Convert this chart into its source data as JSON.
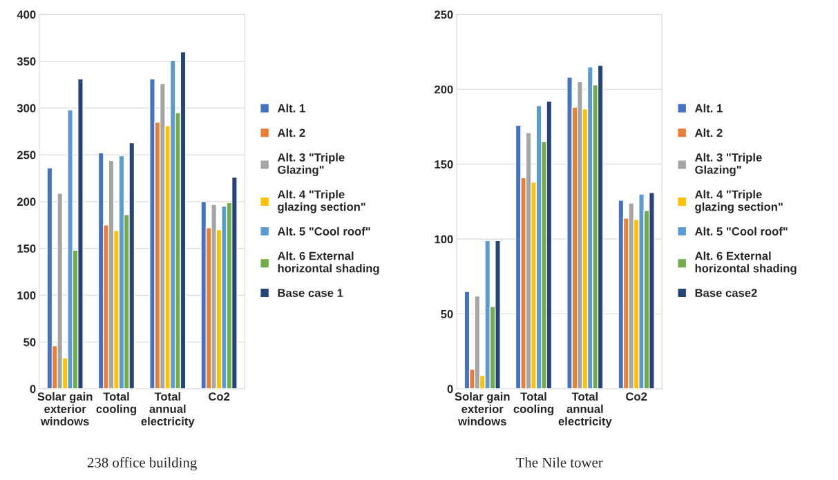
{
  "chart_data": [
    {
      "type": "bar",
      "title": "238 office building",
      "categories": [
        "Solar gain exterior windows",
        "Total cooling",
        "Total annual electricity",
        "Co2"
      ],
      "ylim": [
        0,
        400
      ],
      "yticks": [
        0,
        50,
        100,
        150,
        200,
        250,
        300,
        350,
        400
      ],
      "grid": "y",
      "legend": "right",
      "series": [
        {
          "name": "Alt. 1",
          "color": "#4472c4",
          "values": [
            236,
            252,
            331,
            200
          ]
        },
        {
          "name": "Alt. 2",
          "color": "#ed7d31",
          "values": [
            46,
            175,
            285,
            172
          ]
        },
        {
          "name": "Alt. 3 \"Triple Glazing\"",
          "color": "#a5a5a5",
          "values": [
            209,
            244,
            326,
            197
          ]
        },
        {
          "name": "Alt. 4 \"Triple glazing section\"",
          "color": "#ffc000",
          "values": [
            33,
            169,
            281,
            170
          ]
        },
        {
          "name": "Alt. 5 \"Cool roof\"",
          "color": "#5b9bd5",
          "values": [
            298,
            249,
            351,
            195
          ]
        },
        {
          "name": "Alt. 6 External horizontal shading",
          "color": "#70ad47",
          "values": [
            148,
            186,
            295,
            199
          ]
        },
        {
          "name": "Base case 1",
          "color": "#264478",
          "values": [
            331,
            263,
            360,
            226
          ]
        }
      ]
    },
    {
      "type": "bar",
      "title": "The Nile tower",
      "categories": [
        "Solar gain exterior windows",
        "Total cooling",
        "Total annual electricity",
        "Co2"
      ],
      "ylim": [
        0,
        250
      ],
      "yticks": [
        0,
        50,
        100,
        150,
        200,
        250
      ],
      "grid": "y",
      "legend": "right",
      "series": [
        {
          "name": "Alt. 1",
          "color": "#4472c4",
          "values": [
            65,
            176,
            208,
            126
          ]
        },
        {
          "name": "Alt. 2",
          "color": "#ed7d31",
          "values": [
            13,
            141,
            188,
            114
          ]
        },
        {
          "name": "Alt. 3 \"Triple Glazing\"",
          "color": "#a5a5a5",
          "values": [
            62,
            171,
            205,
            124
          ]
        },
        {
          "name": "Alt. 4 \"Triple glazing section\"",
          "color": "#ffc000",
          "values": [
            9,
            138,
            187,
            113
          ]
        },
        {
          "name": "Alt. 5 \"Cool roof\"",
          "color": "#5b9bd5",
          "values": [
            99,
            189,
            215,
            130
          ]
        },
        {
          "name": "Alt. 6 External horizontal shading",
          "color": "#70ad47",
          "values": [
            55,
            165,
            203,
            119
          ]
        },
        {
          "name": "Base case2",
          "color": "#264478",
          "values": [
            99,
            192,
            216,
            131
          ]
        }
      ]
    }
  ]
}
